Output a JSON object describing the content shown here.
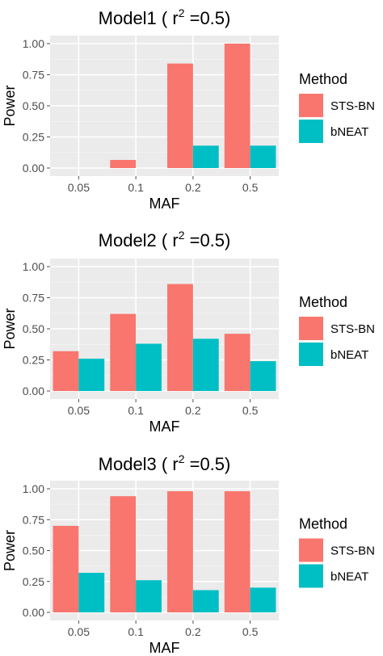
{
  "panel_bg": "#ebebeb",
  "grid_major": "#ffffff",
  "grid_minor": "#f5f5f5",
  "tick_color": "#4d4d4d",
  "legend": {
    "title": "Method",
    "items": [
      {
        "label": "STS-BN",
        "color": "#f8766d"
      },
      {
        "label": "bNEAT",
        "color": "#00bfc4"
      }
    ]
  },
  "chart_data": [
    {
      "type": "bar",
      "title_prefix": "Model1 ( r",
      "title_sup": "2",
      "title_suffix": " =0.5)",
      "xlabel": "MAF",
      "ylabel": "Power",
      "categories": [
        "0.05",
        "0.1",
        "0.2",
        "0.5"
      ],
      "ylim": [
        0,
        1
      ],
      "yticks": [
        "0.00",
        "0.25",
        "0.50",
        "0.75",
        "1.00"
      ],
      "series": [
        {
          "name": "STS-BN",
          "values": [
            0.0,
            0.065,
            0.84,
            1.0
          ]
        },
        {
          "name": "bNEAT",
          "values": [
            0.0,
            0.0,
            0.18,
            0.18
          ]
        }
      ]
    },
    {
      "type": "bar",
      "title_prefix": "Model2 ( r",
      "title_sup": "2",
      "title_suffix": " =0.5)",
      "xlabel": "MAF",
      "ylabel": "Power",
      "categories": [
        "0.05",
        "0.1",
        "0.2",
        "0.5"
      ],
      "ylim": [
        0,
        1
      ],
      "yticks": [
        "0.00",
        "0.25",
        "0.50",
        "0.75",
        "1.00"
      ],
      "series": [
        {
          "name": "STS-BN",
          "values": [
            0.32,
            0.62,
            0.86,
            0.46
          ]
        },
        {
          "name": "bNEAT",
          "values": [
            0.26,
            0.38,
            0.42,
            0.24
          ]
        }
      ]
    },
    {
      "type": "bar",
      "title_prefix": "Model3 ( r",
      "title_sup": "2",
      "title_suffix": " =0.5)",
      "xlabel": "MAF",
      "ylabel": "Power",
      "categories": [
        "0.05",
        "0.1",
        "0.2",
        "0.5"
      ],
      "ylim": [
        0,
        1
      ],
      "yticks": [
        "0.00",
        "0.25",
        "0.50",
        "0.75",
        "1.00"
      ],
      "series": [
        {
          "name": "STS-BN",
          "values": [
            0.7,
            0.94,
            0.98,
            0.98
          ]
        },
        {
          "name": "bNEAT",
          "values": [
            0.32,
            0.26,
            0.18,
            0.2
          ]
        }
      ]
    }
  ]
}
